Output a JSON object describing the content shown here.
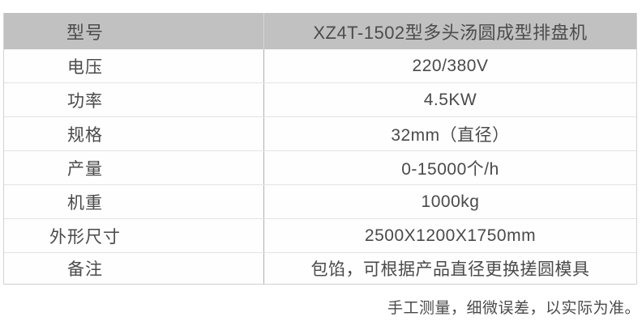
{
  "table": {
    "header": {
      "label": "型号",
      "value": "XZ4T-1502型多头汤圆成型排盘机"
    },
    "rows": [
      {
        "label": "电压",
        "value": "220/380V"
      },
      {
        "label": "功率",
        "value": "4.5KW"
      },
      {
        "label": "规格",
        "value": "32mm（直径）"
      },
      {
        "label": "产量",
        "value": "0-15000个/h"
      },
      {
        "label": "机重",
        "value": "1000kg"
      },
      {
        "label": "外形尺寸",
        "value": "2500X1200X1750mm"
      },
      {
        "label": "备注",
        "value": "包馅，可根据产品直径更换搓圆模具"
      }
    ],
    "colors": {
      "header_bg": "#c1c1c1",
      "header_text": "#4c4c4c",
      "body_bg": "#fefefe",
      "body_text": "#4a4a4a",
      "column_divider": "#afafaf",
      "row_border": "#e3e3e3",
      "outer_border": "#d2d2d2"
    }
  },
  "footer": {
    "note": "手工测量，细微误差，以实际为准。"
  }
}
